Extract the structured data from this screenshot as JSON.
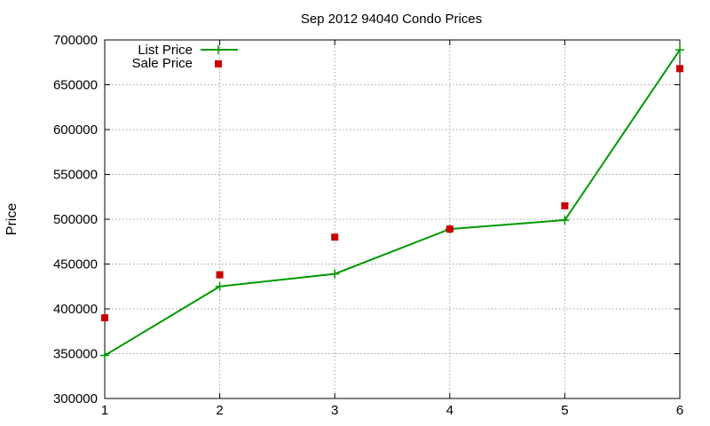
{
  "chart_data": {
    "type": "line",
    "title": "Sep 2012 94040 Condo Prices",
    "xlabel": "",
    "ylabel": "Price",
    "xlim": [
      1,
      6
    ],
    "ylim": [
      300000,
      700000
    ],
    "xticks": [
      "1",
      "2",
      "3",
      "4",
      "5",
      "6"
    ],
    "yticks": [
      "300000",
      "350000",
      "400000",
      "450000",
      "500000",
      "550000",
      "600000",
      "650000",
      "700000"
    ],
    "grid": true,
    "legend_position": "top-left",
    "x": [
      1,
      2,
      3,
      4,
      5,
      6
    ],
    "series": [
      {
        "name": "List Price",
        "type": "line",
        "marker": "plus",
        "color": "#009900",
        "values": [
          348000,
          425000,
          439000,
          489000,
          499000,
          689000
        ]
      },
      {
        "name": "Sale Price",
        "type": "scatter",
        "marker": "square",
        "color": "#cc0000",
        "values": [
          390000,
          438000,
          480000,
          489000,
          515000,
          668000
        ]
      }
    ]
  }
}
